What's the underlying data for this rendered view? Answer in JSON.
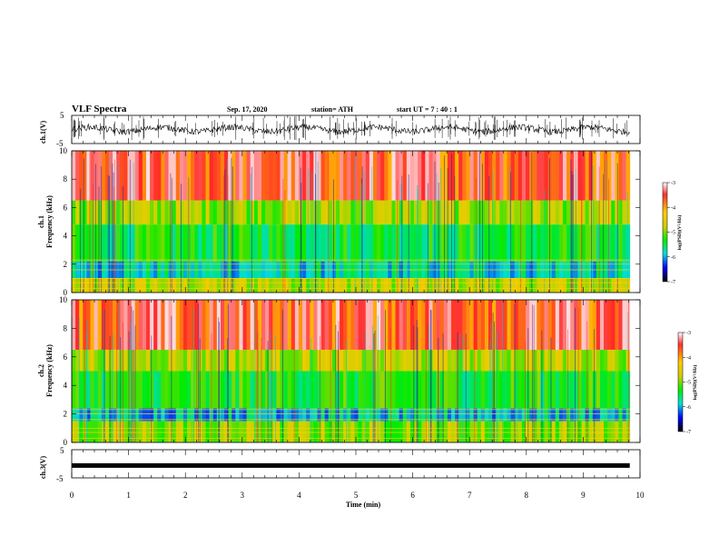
{
  "header": {
    "title": "VLF Spectra",
    "date": "Sep. 17, 2020",
    "station": "station= ATH",
    "start": "start  UT =   7 : 40 : 1"
  },
  "chart_data": [
    {
      "type": "line",
      "panel": "waveform-ch1",
      "ylabel": "ch.1(V)",
      "ylim": [
        -5,
        5
      ],
      "yticks": [
        "5",
        "-5"
      ],
      "xlim": [
        0,
        10
      ],
      "series_color": "#000000",
      "approx_level_v": 0.0
    },
    {
      "type": "heatmap",
      "panel": "spectrogram-ch1",
      "ylabel_channel": "ch.1",
      "ylabel": "Frequency (kHz)",
      "ylim": [
        0,
        10
      ],
      "yticks": [
        "0",
        "2",
        "4",
        "6",
        "8",
        "10"
      ],
      "xlim": [
        0,
        10
      ],
      "colorbar": {
        "label": "log(PSD)(V²/Hz)",
        "range": [
          -7,
          -3
        ],
        "ticks": [
          "-3",
          "-4",
          "-5",
          "-6",
          "-7"
        ]
      },
      "bands_khz": [
        {
          "from": 0,
          "to": 1,
          "value": -4.6
        },
        {
          "from": 1,
          "to": 2.2,
          "value": -5.8
        },
        {
          "from": 2.2,
          "to": 4.8,
          "value": -5.3
        },
        {
          "from": 4.8,
          "to": 6.5,
          "value": -4.7
        },
        {
          "from": 6.5,
          "to": 10,
          "value": -3.5
        }
      ]
    },
    {
      "type": "heatmap",
      "panel": "spectrogram-ch2",
      "ylabel_channel": "ch.2",
      "ylabel": "Frequency (kHz)",
      "ylim": [
        0,
        10
      ],
      "yticks": [
        "0",
        "2",
        "4",
        "6",
        "8",
        "10"
      ],
      "xlim": [
        0,
        10
      ],
      "colorbar": {
        "label": "log(PSD)(V²/Hz)",
        "range": [
          -7,
          -3
        ],
        "ticks": [
          "-3",
          "-4",
          "-5",
          "-6",
          "-7"
        ]
      },
      "bands_khz": [
        {
          "from": 0,
          "to": 1.5,
          "value": -4.8
        },
        {
          "from": 1.5,
          "to": 2.4,
          "value": -5.9
        },
        {
          "from": 2.4,
          "to": 5,
          "value": -5.2
        },
        {
          "from": 5,
          "to": 6.5,
          "value": -4.6
        },
        {
          "from": 6.5,
          "to": 10,
          "value": -3.5
        }
      ]
    },
    {
      "type": "line",
      "panel": "waveform-ch3",
      "ylabel": "ch.3(V)",
      "ylim": [
        -5,
        5
      ],
      "yticks": [
        "5",
        "-5"
      ],
      "xlim": [
        0,
        10
      ],
      "series_color": "#000000",
      "approx_level_v": -0.6
    }
  ],
  "xaxis": {
    "label": "Time  (min)",
    "range": [
      0,
      10
    ],
    "ticks": [
      "0",
      "1",
      "2",
      "3",
      "4",
      "5",
      "6",
      "7",
      "8",
      "9",
      "10"
    ],
    "data_end_min": 9.82
  }
}
